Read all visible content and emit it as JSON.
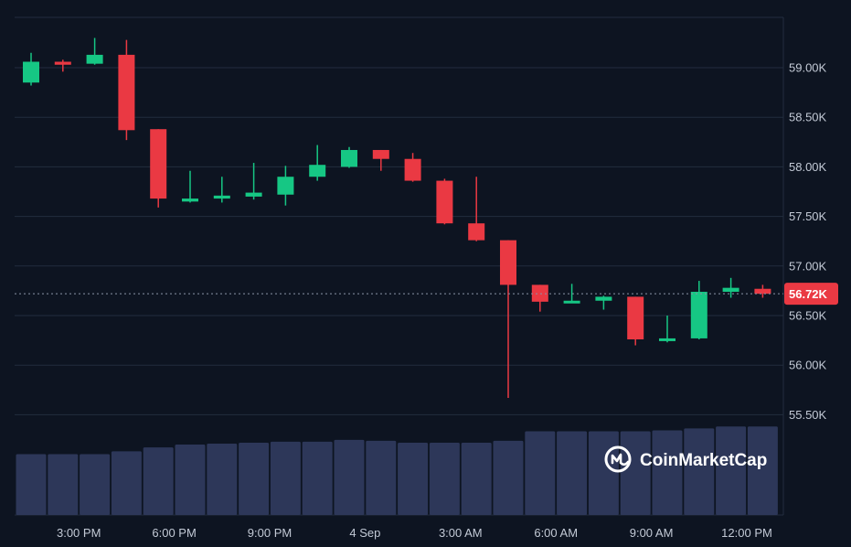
{
  "chart_data": {
    "type": "candlestick",
    "y_axis": {
      "ticks": [
        55500,
        56000,
        56500,
        57000,
        57500,
        58000,
        58500,
        59000
      ],
      "tick_labels": [
        "55.50K",
        "56.00K",
        "56.50K",
        "57.00K",
        "57.50K",
        "58.00K",
        "58.50K",
        "59.00K"
      ],
      "position": "right"
    },
    "x_axis": {
      "tick_labels": [
        "3:00 PM",
        "6:00 PM",
        "9:00 PM",
        "4 Sep",
        "3:00 AM",
        "6:00 AM",
        "9:00 AM",
        "12:00 PM"
      ],
      "tick_candle_index": [
        1.5,
        4.5,
        7.5,
        10.5,
        13.5,
        16.5,
        19.5,
        22.5
      ]
    },
    "current_price": 56720,
    "current_price_label": "56.72K",
    "colors": {
      "up": "#16c784",
      "down": "#ea3943",
      "grid": "#222d3e",
      "volume": "#2d3759",
      "price_tag": "#ea3943"
    },
    "candles": [
      {
        "o": 58850,
        "h": 59150,
        "l": 58820,
        "c": 59060
      },
      {
        "o": 59060,
        "h": 59080,
        "l": 58960,
        "c": 59030
      },
      {
        "o": 59040,
        "h": 59300,
        "l": 59030,
        "c": 59130
      },
      {
        "o": 59130,
        "h": 59280,
        "l": 58270,
        "c": 58370
      },
      {
        "o": 58380,
        "h": 58380,
        "l": 57590,
        "c": 57680
      },
      {
        "o": 57650,
        "h": 57960,
        "l": 57640,
        "c": 57680
      },
      {
        "o": 57680,
        "h": 57900,
        "l": 57640,
        "c": 57710
      },
      {
        "o": 57700,
        "h": 58040,
        "l": 57670,
        "c": 57740
      },
      {
        "o": 57720,
        "h": 58010,
        "l": 57610,
        "c": 57900
      },
      {
        "o": 57900,
        "h": 58220,
        "l": 57860,
        "c": 58020
      },
      {
        "o": 58000,
        "h": 58200,
        "l": 57990,
        "c": 58170
      },
      {
        "o": 58170,
        "h": 58170,
        "l": 57960,
        "c": 58080
      },
      {
        "o": 58080,
        "h": 58140,
        "l": 57850,
        "c": 57860
      },
      {
        "o": 57860,
        "h": 57880,
        "l": 57420,
        "c": 57430
      },
      {
        "o": 57430,
        "h": 57900,
        "l": 57250,
        "c": 57260
      },
      {
        "o": 57260,
        "h": 57260,
        "l": 55670,
        "c": 56810
      },
      {
        "o": 56810,
        "h": 56810,
        "l": 56540,
        "c": 56640
      },
      {
        "o": 56650,
        "h": 56820,
        "l": 56640,
        "c": 56650
      },
      {
        "o": 56650,
        "h": 56700,
        "l": 56560,
        "c": 56690
      },
      {
        "o": 56690,
        "h": 56690,
        "l": 56200,
        "c": 56260
      },
      {
        "o": 56250,
        "h": 56500,
        "l": 56230,
        "c": 56270
      },
      {
        "o": 56270,
        "h": 56850,
        "l": 56260,
        "c": 56740
      },
      {
        "o": 56740,
        "h": 56880,
        "l": 56680,
        "c": 56780
      },
      {
        "o": 56770,
        "h": 56810,
        "l": 56680,
        "c": 56720
      }
    ],
    "volume_relative": [
      0.64,
      0.64,
      0.64,
      0.67,
      0.71,
      0.74,
      0.75,
      0.76,
      0.77,
      0.77,
      0.79,
      0.78,
      0.76,
      0.76,
      0.76,
      0.78,
      0.88,
      0.88,
      0.88,
      0.88,
      0.89,
      0.91,
      0.93,
      0.93
    ]
  },
  "brand": {
    "name": "CoinMarketCap",
    "logo_icon": "coinmarketcap-logo-icon"
  }
}
